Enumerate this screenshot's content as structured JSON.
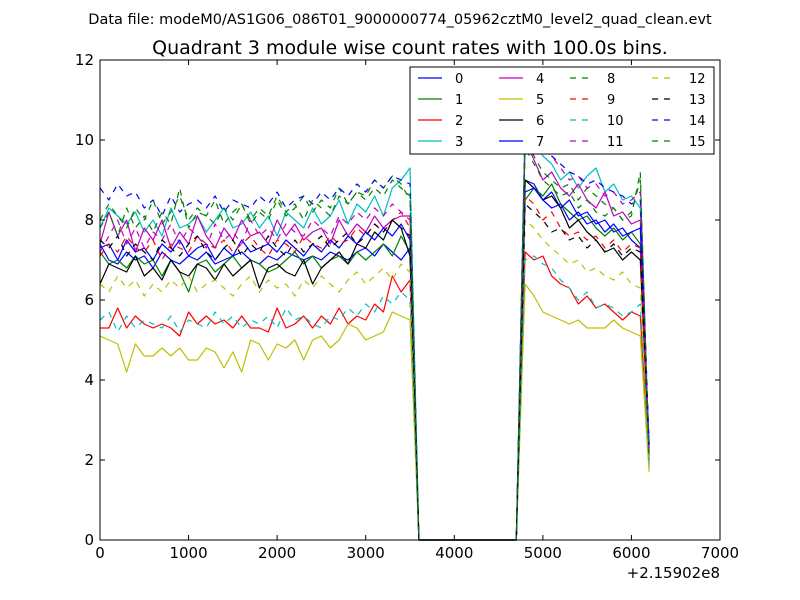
{
  "header_text": "Data file: modeM0/AS1G06_086T01_9000000774_05962cztM0_level2_quad_clean.evt",
  "chart_data": {
    "type": "line",
    "title": "Quadrant 3 module wise count rates with 100.0s bins.",
    "xlabel": "",
    "ylabel": "",
    "x_offset_label": "+2.15902e8",
    "xlim": [
      0,
      7000
    ],
    "ylim": [
      0,
      12
    ],
    "xticks": [
      0,
      1000,
      2000,
      3000,
      4000,
      5000,
      6000,
      7000
    ],
    "yticks": [
      0,
      2,
      4,
      6,
      8,
      10,
      12
    ],
    "xtick_labels": [
      "0",
      "1000",
      "2000",
      "3000",
      "4000",
      "5000",
      "6000",
      "7000"
    ],
    "ytick_labels": [
      "0",
      "2",
      "4",
      "6",
      "8",
      "10",
      "12"
    ],
    "legend_position": "top-right",
    "legend_columns": 4,
    "grid": false,
    "segments": [
      {
        "start": 0,
        "end": 3500,
        "step": 100
      },
      {
        "gap": [
          3600,
          4700
        ]
      },
      {
        "start": 4800,
        "end": 6200,
        "step": 100
      }
    ],
    "series": [
      {
        "name": "0",
        "color": "#0000ff",
        "style": "solid",
        "values": [
          7.4,
          7.0,
          6.9,
          7.2,
          7.0,
          7.1,
          6.8,
          7.2,
          7.0,
          6.9,
          7.1,
          7.0,
          7.2,
          6.9,
          7.0,
          7.1,
          7.2,
          7.0,
          6.9,
          7.1,
          7.0,
          7.2,
          7.1,
          7.0,
          7.1,
          7.0,
          7.2,
          7.1,
          7.0,
          7.2,
          7.3,
          7.1,
          7.4,
          7.2,
          7.0,
          7.3,
          0,
          0,
          0,
          0,
          0,
          0,
          0,
          0,
          0,
          0,
          0,
          0,
          9.0,
          8.9,
          8.5,
          8.7,
          8.3,
          8.5,
          8.1,
          8.2,
          7.9,
          8.0,
          7.7,
          7.8,
          7.5,
          7.3,
          2.4
        ]
      },
      {
        "name": "1",
        "color": "#008000",
        "style": "solid",
        "values": [
          7.2,
          6.9,
          7.0,
          6.8,
          7.1,
          6.9,
          7.0,
          6.6,
          7.0,
          6.7,
          6.2,
          6.9,
          7.0,
          6.7,
          6.9,
          7.1,
          6.8,
          7.0,
          6.9,
          6.7,
          6.8,
          7.0,
          7.2,
          6.9,
          7.1,
          6.8,
          7.0,
          7.1,
          6.9,
          7.2,
          7.0,
          7.2,
          7.4,
          7.1,
          7.6,
          7.2,
          0,
          0,
          0,
          0,
          0,
          0,
          0,
          0,
          0,
          0,
          0,
          0,
          8.5,
          8.8,
          8.6,
          8.9,
          8.4,
          8.2,
          8.0,
          8.1,
          7.8,
          7.6,
          7.8,
          7.5,
          7.7,
          7.4,
          2.2
        ]
      },
      {
        "name": "2",
        "color": "#ff0000",
        "style": "solid",
        "values": [
          5.3,
          5.3,
          5.8,
          5.3,
          5.6,
          5.4,
          5.3,
          5.4,
          5.3,
          5.1,
          5.7,
          5.4,
          5.6,
          5.4,
          5.5,
          5.3,
          5.6,
          5.3,
          5.3,
          5.2,
          5.8,
          5.3,
          5.4,
          5.6,
          5.3,
          5.6,
          5.4,
          5.8,
          5.4,
          5.6,
          5.5,
          5.9,
          5.7,
          6.6,
          6.2,
          6.5,
          0,
          0,
          0,
          0,
          0,
          0,
          0,
          0,
          0,
          0,
          0,
          0,
          7.2,
          7.0,
          7.1,
          6.6,
          6.4,
          6.3,
          5.9,
          6.1,
          5.8,
          5.9,
          5.7,
          5.5,
          5.7,
          5.6,
          1.9
        ]
      },
      {
        "name": "3",
        "color": "#00bfbf",
        "style": "solid",
        "values": [
          7.8,
          8.3,
          8.1,
          7.9,
          8.2,
          7.7,
          8.0,
          7.6,
          8.3,
          7.8,
          7.9,
          8.1,
          7.7,
          8.0,
          8.3,
          7.8,
          7.9,
          8.2,
          7.8,
          8.1,
          7.6,
          8.2,
          8.0,
          7.8,
          8.3,
          7.9,
          8.1,
          8.5,
          7.9,
          8.4,
          8.2,
          8.6,
          8.1,
          8.8,
          9.0,
          9.3,
          0,
          0,
          0,
          0,
          0,
          0,
          0,
          0,
          0,
          0,
          0,
          0,
          10.5,
          10.0,
          9.6,
          9.4,
          9.0,
          9.2,
          8.8,
          9.1,
          9.3,
          8.7,
          8.9,
          8.5,
          8.6,
          8.3,
          1.8
        ]
      },
      {
        "name": "4",
        "color": "#bf00bf",
        "style": "solid",
        "values": [
          7.4,
          8.2,
          7.6,
          8.0,
          7.2,
          7.8,
          7.5,
          8.0,
          7.3,
          7.7,
          7.4,
          8.1,
          7.6,
          7.3,
          7.8,
          7.5,
          8.0,
          7.6,
          7.7,
          7.4,
          8.0,
          7.6,
          7.9,
          7.5,
          7.7,
          7.8,
          7.4,
          8.0,
          7.6,
          7.9,
          7.7,
          8.1,
          7.8,
          8.0,
          8.1,
          8.1,
          0,
          0,
          0,
          0,
          0,
          0,
          0,
          0,
          0,
          0,
          0,
          0,
          10.0,
          9.5,
          9.0,
          9.2,
          8.8,
          8.6,
          8.9,
          8.5,
          8.3,
          8.7,
          8.1,
          8.2,
          7.9,
          8.0,
          2.0
        ]
      },
      {
        "name": "5",
        "color": "#bfbf00",
        "style": "solid",
        "values": [
          5.1,
          5.0,
          4.9,
          4.2,
          4.9,
          4.6,
          4.6,
          4.8,
          4.6,
          4.8,
          4.5,
          4.5,
          4.8,
          4.7,
          4.3,
          4.7,
          4.2,
          5.0,
          4.9,
          4.5,
          4.9,
          4.8,
          5.0,
          4.5,
          5.0,
          5.1,
          4.8,
          5.0,
          5.4,
          5.3,
          5.0,
          5.1,
          5.2,
          5.7,
          5.6,
          5.5,
          0,
          0,
          0,
          0,
          0,
          0,
          0,
          0,
          0,
          0,
          0,
          0,
          6.4,
          6.1,
          5.7,
          5.6,
          5.5,
          5.4,
          5.5,
          5.3,
          5.3,
          5.3,
          5.5,
          5.3,
          5.2,
          5.1,
          1.7
        ]
      },
      {
        "name": "6",
        "color": "#000000",
        "style": "solid",
        "values": [
          6.4,
          6.9,
          6.8,
          6.7,
          7.1,
          6.6,
          6.8,
          6.5,
          7.0,
          6.7,
          6.6,
          6.9,
          6.8,
          6.5,
          6.9,
          6.6,
          6.8,
          7.0,
          6.3,
          6.8,
          6.9,
          6.7,
          6.6,
          7.0,
          6.4,
          6.8,
          7.0,
          7.2,
          6.9,
          7.4,
          7.3,
          7.7,
          7.5,
          8.0,
          7.8,
          7.1,
          0,
          0,
          0,
          0,
          0,
          0,
          0,
          0,
          0,
          0,
          0,
          0,
          9.0,
          8.8,
          8.5,
          8.6,
          8.3,
          7.8,
          8.0,
          7.7,
          7.5,
          7.2,
          7.3,
          7.0,
          7.2,
          7.0,
          2.1
        ]
      },
      {
        "name": "7",
        "color": "#0000ff",
        "style": "solid",
        "values": [
          7.3,
          7.4,
          7.0,
          7.5,
          7.2,
          7.3,
          7.0,
          7.4,
          7.2,
          7.5,
          7.1,
          7.3,
          7.4,
          7.0,
          7.3,
          7.1,
          7.5,
          7.2,
          7.3,
          7.4,
          7.2,
          7.5,
          7.3,
          7.1,
          7.4,
          7.2,
          7.5,
          7.3,
          7.6,
          7.4,
          7.7,
          7.5,
          7.8,
          7.6,
          7.9,
          7.5,
          0,
          0,
          0,
          0,
          0,
          0,
          0,
          0,
          0,
          0,
          0,
          0,
          8.7,
          8.8,
          8.5,
          8.3,
          8.4,
          8.0,
          8.2,
          7.9,
          8.0,
          7.7,
          7.9,
          7.6,
          7.7,
          7.8,
          2.3
        ]
      },
      {
        "name": "8",
        "color": "#008000",
        "style": "dashed",
        "values": [
          7.8,
          8.2,
          7.6,
          8.3,
          7.8,
          8.1,
          7.7,
          8.2,
          7.9,
          8.8,
          7.8,
          8.2,
          8.1,
          7.9,
          8.3,
          8.0,
          8.4,
          7.9,
          8.2,
          8.0,
          8.5,
          8.1,
          8.3,
          8.6,
          8.2,
          8.5,
          8.3,
          8.8,
          8.4,
          8.7,
          8.6,
          9.0,
          8.8,
          9.1,
          8.9,
          8.5,
          0,
          0,
          0,
          0,
          0,
          0,
          0,
          0,
          0,
          0,
          0,
          0,
          10.0,
          9.6,
          9.2,
          9.0,
          8.8,
          8.9,
          8.5,
          8.8,
          8.6,
          8.4,
          8.3,
          8.0,
          8.2,
          9.0,
          2.2
        ]
      },
      {
        "name": "9",
        "color": "#ff0000",
        "style": "dashed",
        "values": [
          7.1,
          7.4,
          7.2,
          7.6,
          7.3,
          7.2,
          7.5,
          7.0,
          7.4,
          7.3,
          7.2,
          7.6,
          7.4,
          7.3,
          7.5,
          7.2,
          7.4,
          7.6,
          7.3,
          7.1,
          7.5,
          7.4,
          7.2,
          7.6,
          7.4,
          7.3,
          7.6,
          7.4,
          7.5,
          7.8,
          7.6,
          7.9,
          7.7,
          8.0,
          8.2,
          7.8,
          0,
          0,
          0,
          0,
          0,
          0,
          0,
          0,
          0,
          0,
          0,
          0,
          8.6,
          8.4,
          8.0,
          8.2,
          7.8,
          7.6,
          7.7,
          7.5,
          7.6,
          7.3,
          7.5,
          7.2,
          7.4,
          7.3,
          2.0
        ]
      },
      {
        "name": "10",
        "color": "#00bfbf",
        "style": "dashed",
        "values": [
          5.5,
          5.7,
          5.2,
          5.6,
          5.3,
          5.5,
          5.4,
          5.3,
          5.6,
          5.2,
          5.5,
          5.4,
          5.3,
          5.7,
          5.4,
          5.6,
          5.3,
          5.5,
          5.4,
          5.6,
          5.3,
          5.8,
          5.5,
          5.6,
          5.4,
          5.3,
          5.6,
          5.5,
          5.8,
          5.6,
          5.9,
          5.7,
          6.1,
          5.9,
          6.2,
          6.0,
          0,
          0,
          0,
          0,
          0,
          0,
          0,
          0,
          0,
          0,
          0,
          0,
          7.0,
          7.1,
          6.9,
          6.8,
          6.5,
          6.3,
          6.0,
          6.2,
          5.8,
          5.9,
          5.8,
          5.6,
          5.7,
          5.9,
          1.9
        ]
      },
      {
        "name": "11",
        "color": "#bf00bf",
        "style": "dashed",
        "values": [
          7.2,
          7.6,
          8.0,
          7.4,
          7.8,
          7.3,
          7.7,
          7.5,
          7.9,
          7.4,
          7.8,
          7.6,
          7.3,
          7.9,
          7.5,
          7.7,
          7.4,
          8.0,
          7.6,
          7.8,
          7.5,
          7.9,
          7.7,
          7.6,
          8.0,
          7.8,
          7.6,
          8.1,
          7.9,
          8.2,
          8.0,
          8.3,
          8.1,
          8.4,
          8.2,
          8.0,
          0,
          0,
          0,
          0,
          0,
          0,
          0,
          0,
          0,
          0,
          0,
          0,
          10.3,
          10.0,
          9.8,
          9.6,
          9.3,
          9.0,
          9.1,
          8.8,
          8.9,
          8.6,
          8.7,
          8.4,
          8.5,
          8.7,
          2.1
        ]
      },
      {
        "name": "12",
        "color": "#bfbf00",
        "style": "dashed",
        "values": [
          6.4,
          6.2,
          6.6,
          6.3,
          6.5,
          6.1,
          6.4,
          6.2,
          6.5,
          6.3,
          6.6,
          6.2,
          6.4,
          6.5,
          6.3,
          6.1,
          6.4,
          6.6,
          6.2,
          6.5,
          6.3,
          6.4,
          6.1,
          6.5,
          6.3,
          6.6,
          6.4,
          6.2,
          6.5,
          6.7,
          6.4,
          6.6,
          6.8,
          6.5,
          6.9,
          6.7,
          0,
          0,
          0,
          0,
          0,
          0,
          0,
          0,
          0,
          0,
          0,
          0,
          8.0,
          7.8,
          7.5,
          7.3,
          7.1,
          6.9,
          7.0,
          6.7,
          6.8,
          6.6,
          6.5,
          6.7,
          6.4,
          6.3,
          2.0
        ]
      },
      {
        "name": "13",
        "color": "#000000",
        "style": "dashed",
        "values": [
          7.5,
          7.3,
          7.6,
          7.1,
          7.4,
          7.2,
          7.0,
          7.5,
          7.3,
          7.1,
          7.4,
          7.6,
          7.2,
          7.0,
          7.3,
          7.5,
          7.1,
          7.4,
          7.2,
          7.6,
          7.3,
          7.1,
          7.5,
          7.2,
          7.4,
          7.6,
          7.3,
          7.5,
          7.7,
          7.4,
          7.6,
          7.9,
          7.7,
          8.0,
          7.8,
          7.6,
          0,
          0,
          0,
          0,
          0,
          0,
          0,
          0,
          0,
          0,
          0,
          0,
          8.4,
          8.2,
          8.0,
          7.7,
          7.8,
          7.5,
          7.6,
          7.3,
          7.5,
          7.2,
          7.4,
          7.1,
          7.3,
          7.2,
          2.2
        ]
      },
      {
        "name": "14",
        "color": "#0000ff",
        "style": "dashed",
        "values": [
          8.8,
          8.5,
          8.9,
          8.6,
          8.7,
          8.3,
          8.5,
          8.1,
          8.6,
          8.2,
          8.4,
          8.5,
          8.3,
          8.6,
          8.2,
          8.5,
          8.4,
          8.3,
          8.6,
          8.4,
          8.7,
          8.3,
          8.5,
          8.6,
          8.4,
          8.7,
          8.5,
          8.8,
          8.6,
          8.9,
          8.7,
          9.0,
          8.8,
          9.1,
          9.0,
          8.9,
          0,
          0,
          0,
          0,
          0,
          0,
          0,
          0,
          0,
          0,
          0,
          0,
          10.2,
          10.0,
          9.8,
          9.6,
          9.4,
          9.2,
          9.1,
          8.9,
          9.0,
          8.8,
          8.7,
          8.6,
          8.4,
          8.5,
          2.4
        ]
      },
      {
        "name": "15",
        "color": "#008000",
        "style": "dashed",
        "values": [
          8.0,
          8.4,
          8.1,
          7.8,
          8.3,
          8.0,
          8.5,
          7.9,
          8.2,
          8.6,
          8.0,
          8.3,
          8.1,
          8.5,
          7.9,
          8.2,
          8.4,
          8.0,
          8.3,
          8.1,
          8.6,
          8.2,
          8.4,
          8.0,
          8.5,
          8.3,
          8.1,
          8.6,
          8.4,
          8.7,
          8.5,
          8.8,
          8.6,
          9.0,
          8.8,
          8.6,
          0,
          0,
          0,
          0,
          0,
          0,
          0,
          0,
          0,
          0,
          0,
          0,
          9.8,
          9.4,
          9.0,
          8.8,
          8.6,
          8.7,
          8.3,
          8.5,
          8.2,
          8.1,
          8.3,
          8.0,
          8.1,
          9.2,
          2.0
        ]
      }
    ]
  }
}
